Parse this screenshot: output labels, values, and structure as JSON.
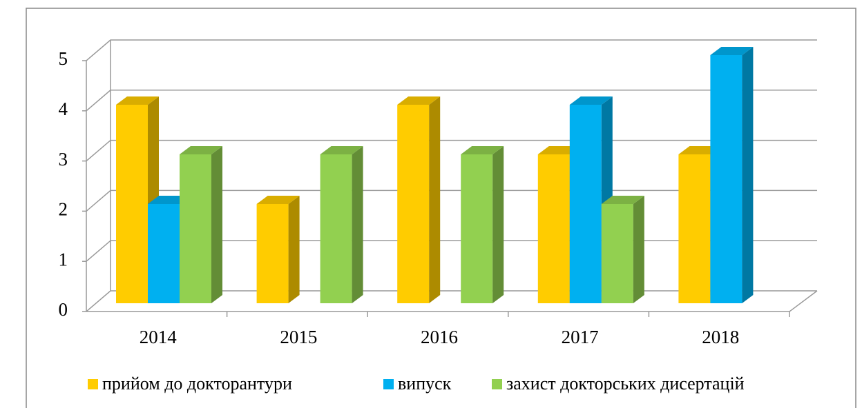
{
  "chart_data": {
    "type": "bar3d",
    "categories": [
      "2014",
      "2015",
      "2016",
      "2017",
      "2018"
    ],
    "series": [
      {
        "name": "прийом до докторантури",
        "color": "#FFCC00",
        "values": [
          4,
          2,
          4,
          3,
          3
        ]
      },
      {
        "name": "випуск",
        "color": "#00B0F0",
        "values": [
          2,
          0,
          0,
          4,
          5
        ]
      },
      {
        "name": "захист докторських дисертацій",
        "color": "#92D050",
        "values": [
          3,
          3,
          3,
          2,
          0
        ]
      }
    ],
    "ylim": [
      0,
      5
    ],
    "yticks": [
      0,
      1,
      2,
      3,
      4,
      5
    ],
    "grid": true,
    "legend": "bottom"
  }
}
